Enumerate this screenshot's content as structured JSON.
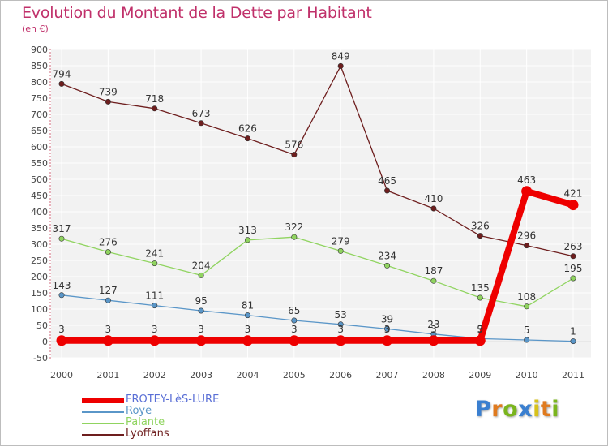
{
  "header": {
    "title": "Evolution du Montant de la Dette par Habitant",
    "unit": "(en €)"
  },
  "logo": {
    "text": "Proxiti",
    "colors": [
      "#3a7fd0",
      "#e07a1e",
      "#7ab51d",
      "#3a7fd0",
      "#d8c21a",
      "#e07a1e",
      "#7ab51d"
    ]
  },
  "chart_data": {
    "type": "line",
    "title": "Evolution du Montant de la Dette par Habitant",
    "ylabel": "(en €)",
    "xlabel": "",
    "x": [
      "2000",
      "2001",
      "2002",
      "2003",
      "2004",
      "2005",
      "2006",
      "2007",
      "2008",
      "2009",
      "2010",
      "2011"
    ],
    "ylim": [
      -50,
      900
    ],
    "yticks": [
      "-50",
      "0",
      "50",
      "100",
      "150",
      "200",
      "250",
      "300",
      "350",
      "400",
      "450",
      "500",
      "550",
      "600",
      "650",
      "700",
      "750",
      "800",
      "850",
      "900"
    ],
    "grid": true,
    "legend_position": "bottom-left",
    "series": [
      {
        "name": "Lyoffans",
        "color": "#6e1e1e",
        "values": [
          794,
          739,
          718,
          673,
          626,
          576,
          849,
          465,
          410,
          326,
          296,
          263
        ],
        "labels": [
          "794",
          "739",
          "718",
          "673",
          "626",
          "576",
          "849",
          "465",
          "410",
          "326",
          "296",
          "263"
        ]
      },
      {
        "name": "Palante",
        "color": "#90d460",
        "values": [
          317,
          276,
          241,
          204,
          313,
          322,
          279,
          234,
          187,
          135,
          108,
          195
        ],
        "labels": [
          "317",
          "276",
          "241",
          "204",
          "313",
          "322",
          "279",
          "234",
          "187",
          "135",
          "108",
          "195"
        ]
      },
      {
        "name": "Roye",
        "color": "#5a96c8",
        "values": [
          143,
          127,
          111,
          95,
          81,
          65,
          53,
          39,
          23,
          9,
          5,
          1
        ],
        "labels": [
          "143",
          "127",
          "111",
          "95",
          "81",
          "65",
          "53",
          "39",
          "23",
          "9",
          "5",
          "1"
        ]
      },
      {
        "name": "FROTEY-LèS-LURE",
        "color": "#ee0000",
        "values": [
          3,
          3,
          3,
          3,
          3,
          3,
          3,
          3,
          3,
          3,
          463,
          421
        ],
        "labels": [
          "3",
          "3",
          "3",
          "3",
          "3",
          "3",
          "3",
          "3",
          "3",
          "3",
          "463",
          "421"
        ]
      }
    ],
    "legend": [
      {
        "name": "FROTEY-LèS-LURE",
        "color": "#ee0000",
        "label_color": "#5a6fd6"
      },
      {
        "name": "Roye",
        "color": "#5a96c8",
        "label_color": "#5a96c8"
      },
      {
        "name": "Palante",
        "color": "#90d460",
        "label_color": "#90d460"
      },
      {
        "name": "Lyoffans",
        "color": "#6e1e1e",
        "label_color": "#6e1e1e"
      }
    ]
  }
}
